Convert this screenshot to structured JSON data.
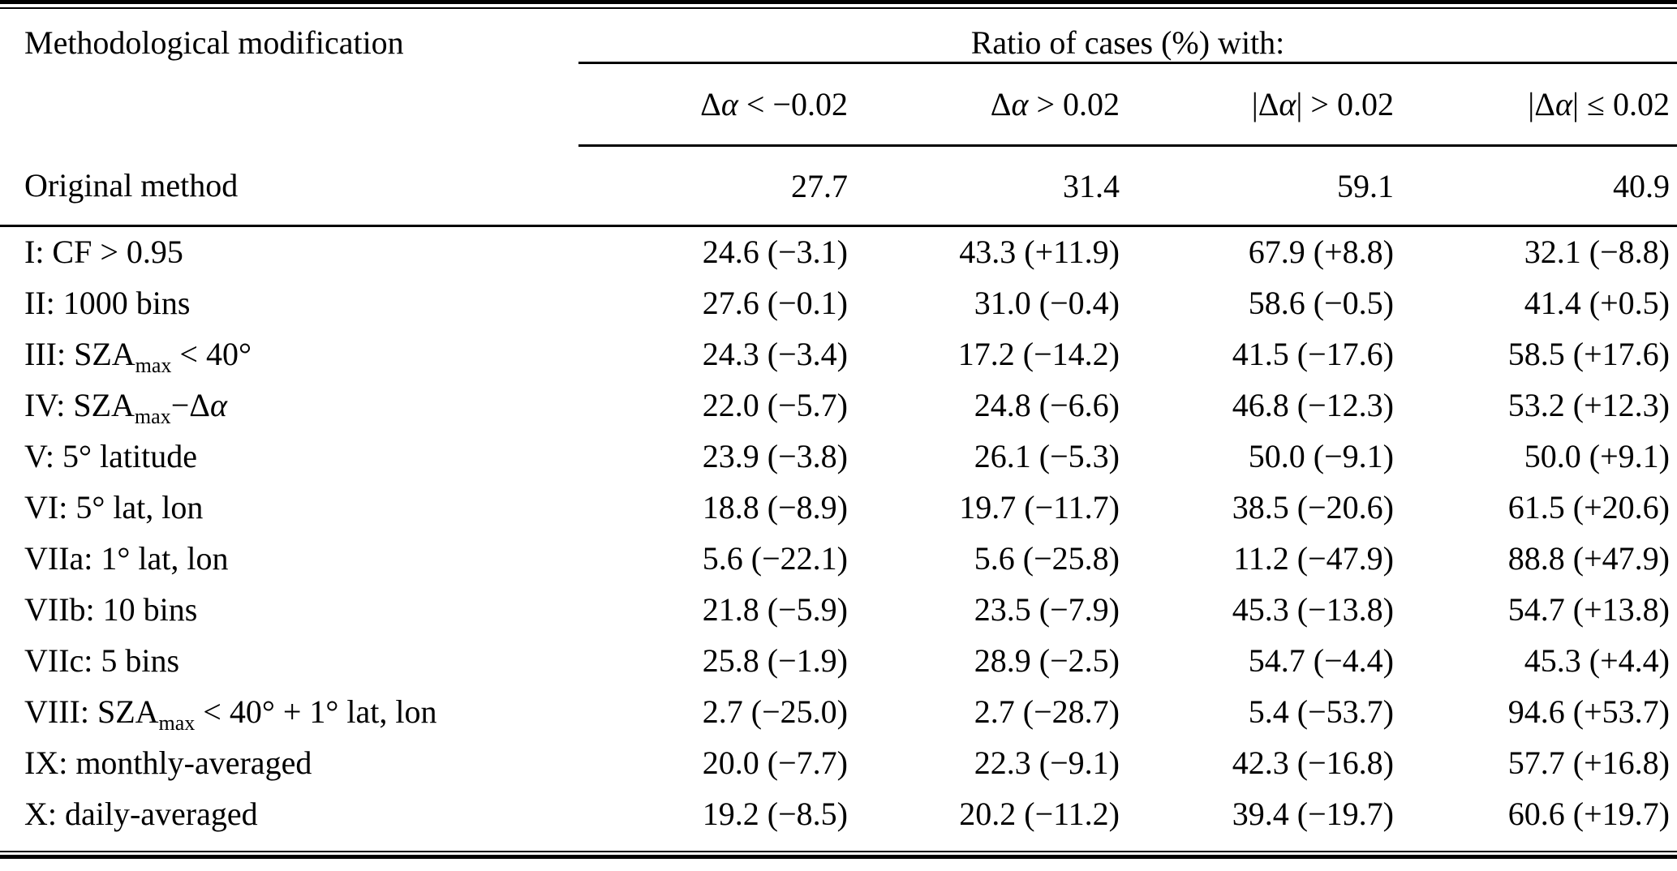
{
  "table": {
    "header": {
      "col0": "Methodological modification",
      "group": "Ratio of cases (%) with:",
      "columns": [
        [
          {
            "t": "Δ"
          },
          {
            "t": "α",
            "i": true
          },
          {
            "t": " < −0.02"
          }
        ],
        [
          {
            "t": "Δ"
          },
          {
            "t": "α",
            "i": true
          },
          {
            "t": " > 0.02"
          }
        ],
        [
          {
            "t": "|Δ"
          },
          {
            "t": "α",
            "i": true
          },
          {
            "t": "| > 0.02"
          }
        ],
        [
          {
            "t": "|Δ"
          },
          {
            "t": "α",
            "i": true
          },
          {
            "t": "| ≤ 0.02"
          }
        ]
      ]
    },
    "baseline": {
      "label_parts": [
        {
          "t": "Original method"
        }
      ],
      "values": [
        "27.7",
        "31.4",
        "59.1",
        "40.9"
      ]
    },
    "rows": [
      {
        "label_parts": [
          {
            "t": "I: CF > 0.95"
          }
        ],
        "values": [
          "24.6 (−3.1)",
          "43.3 (+11.9)",
          "67.9 (+8.8)",
          "32.1 (−8.8)"
        ]
      },
      {
        "label_parts": [
          {
            "t": "II: 1000 bins"
          }
        ],
        "values": [
          "27.6 (−0.1)",
          "31.0 (−0.4)",
          "58.6 (−0.5)",
          "41.4 (+0.5)"
        ]
      },
      {
        "label_parts": [
          {
            "t": "III: SZA"
          },
          {
            "t": "max",
            "sub": true
          },
          {
            "t": " < 40°"
          }
        ],
        "values": [
          "24.3 (−3.4)",
          "17.2 (−14.2)",
          "41.5 (−17.6)",
          "58.5 (+17.6)"
        ]
      },
      {
        "label_parts": [
          {
            "t": "IV: SZA"
          },
          {
            "t": "max",
            "sub": true
          },
          {
            "t": "−Δ"
          },
          {
            "t": "α",
            "i": true
          }
        ],
        "values": [
          "22.0 (−5.7)",
          "24.8 (−6.6)",
          "46.8 (−12.3)",
          "53.2 (+12.3)"
        ]
      },
      {
        "label_parts": [
          {
            "t": "V: 5° latitude"
          }
        ],
        "values": [
          "23.9 (−3.8)",
          "26.1 (−5.3)",
          "50.0 (−9.1)",
          "50.0 (+9.1)"
        ]
      },
      {
        "label_parts": [
          {
            "t": "VI: 5° lat, lon"
          }
        ],
        "values": [
          "18.8 (−8.9)",
          "19.7 (−11.7)",
          "38.5 (−20.6)",
          "61.5 (+20.6)"
        ]
      },
      {
        "label_parts": [
          {
            "t": "VIIa: 1° lat, lon"
          }
        ],
        "values": [
          "5.6 (−22.1)",
          "5.6 (−25.8)",
          "11.2 (−47.9)",
          "88.8 (+47.9)"
        ]
      },
      {
        "label_parts": [
          {
            "t": "VIIb: 10 bins"
          }
        ],
        "values": [
          "21.8 (−5.9)",
          "23.5 (−7.9)",
          "45.3 (−13.8)",
          "54.7 (+13.8)"
        ]
      },
      {
        "label_parts": [
          {
            "t": "VIIc: 5 bins"
          }
        ],
        "values": [
          "25.8 (−1.9)",
          "28.9 (−2.5)",
          "54.7 (−4.4)",
          "45.3 (+4.4)"
        ]
      },
      {
        "label_parts": [
          {
            "t": "VIII: SZA"
          },
          {
            "t": "max",
            "sub": true
          },
          {
            "t": " < 40° + 1° lat, lon"
          }
        ],
        "values": [
          "2.7 (−25.0)",
          "2.7 (−28.7)",
          "5.4 (−53.7)",
          "94.6 (+53.7)"
        ]
      },
      {
        "label_parts": [
          {
            "t": "IX: monthly-averaged"
          }
        ],
        "values": [
          "20.0 (−7.7)",
          "22.3 (−9.1)",
          "42.3 (−16.8)",
          "57.7 (+16.8)"
        ]
      },
      {
        "label_parts": [
          {
            "t": "X: daily-averaged"
          }
        ],
        "values": [
          "19.2 (−8.5)",
          "20.2 (−11.2)",
          "39.4 (−19.7)",
          "60.6 (+19.7)"
        ]
      }
    ]
  }
}
